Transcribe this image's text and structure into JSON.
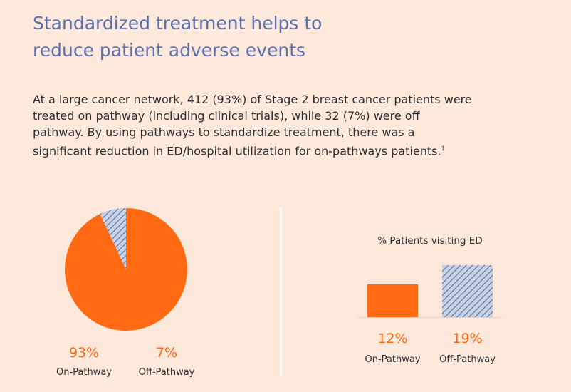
{
  "header": {
    "title_line1": "Standardized treatment helps to",
    "title_line2": "reduce patient adverse events"
  },
  "intro": {
    "text": "At a large cancer network, 412 (93%) of Stage 2 breast cancer patients were treated on pathway (including clinical trials), while 32 (7%) were off pathway. By using pathways to standardize treatment, there was a significant reduction in ED/hospital utilization for on-pathways patients.",
    "footnote": "1"
  },
  "colors": {
    "background": "#fde9dc",
    "title": "#5d6fae",
    "accent_orange": "#ff6a13",
    "hatch_fill": "#c9d3e8",
    "hatch_line": "#3b4a78"
  },
  "chart_data": [
    {
      "type": "pie",
      "title": "",
      "slices": [
        {
          "label": "On-Pathway",
          "value": 93,
          "value_label": "93%",
          "pattern": "solid"
        },
        {
          "label": "Off-Pathway",
          "value": 7,
          "value_label": "7%",
          "pattern": "hatched"
        }
      ]
    },
    {
      "type": "bar",
      "title": "% Patients visiting ED",
      "categories": [
        "On-Pathway",
        "Off-Pathway"
      ],
      "values": [
        12,
        19
      ],
      "value_labels": [
        "12%",
        "19%"
      ],
      "ylim": [
        0,
        19
      ],
      "patterns": [
        "solid",
        "hatched"
      ]
    }
  ]
}
